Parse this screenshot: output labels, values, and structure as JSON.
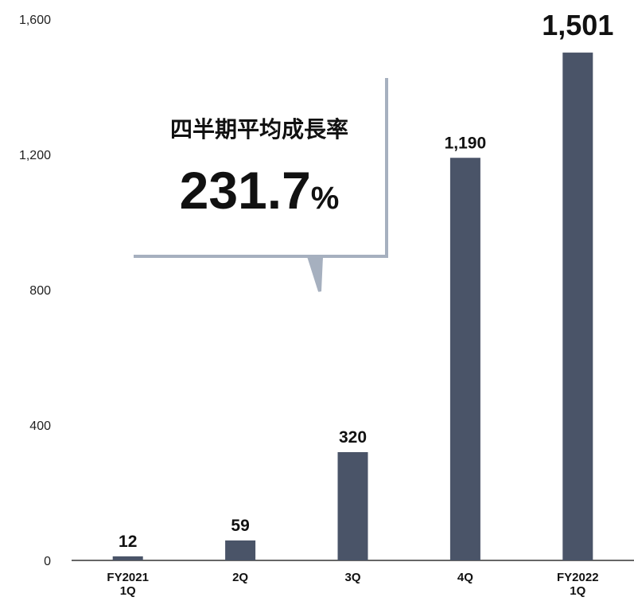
{
  "chart_data": {
    "type": "bar",
    "title": "",
    "xlabel": "",
    "ylabel": "",
    "ylim": [
      0,
      1600
    ],
    "yticks": [
      0,
      400,
      800,
      1200,
      1600
    ],
    "ytick_labels": [
      "0",
      "400",
      "800",
      "1,200",
      "1,600"
    ],
    "categories": [
      [
        "FY2021",
        "1Q"
      ],
      [
        "2Q"
      ],
      [
        "3Q"
      ],
      [
        "4Q"
      ],
      [
        "FY2022",
        "1Q"
      ]
    ],
    "values": [
      12,
      59,
      320,
      1190,
      1501
    ],
    "value_labels": [
      "12",
      "59",
      "320",
      "1,190",
      "1,501"
    ],
    "bar_color": "#4a5468",
    "grid": false,
    "annotation": {
      "title": "四半期平均成長率",
      "value": "231.7",
      "unit": "%",
      "border_color": "#a6b0bf"
    }
  }
}
